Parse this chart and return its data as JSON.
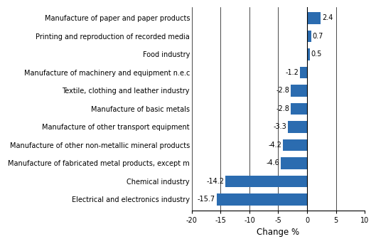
{
  "categories": [
    "Electrical and electronics industry",
    "Chemical industry",
    "Manufacture of fabricated metal products, except m",
    "Manufacture of other non-metallic mineral products",
    "Manufacture of other transport equipment",
    "Manufacture of basic metals",
    "Textile, clothing and leather industry",
    "Manufacture of machinery and equipment n.e.c",
    "Food industry",
    "Printing and reproduction of recorded media",
    "Manufacture of paper and paper products"
  ],
  "values": [
    -15.7,
    -14.2,
    -4.6,
    -4.2,
    -3.3,
    -2.8,
    -2.8,
    -1.2,
    0.5,
    0.7,
    2.4
  ],
  "bar_color": "#2b6cb0",
  "xlabel": "Change %",
  "xlim": [
    -20,
    10
  ],
  "xticks": [
    -20,
    -15,
    -10,
    -5,
    0,
    5,
    10
  ],
  "value_label_fontsize": 7.0,
  "axis_label_fontsize": 8.5,
  "tick_label_fontsize": 7.0,
  "ylabel_fontsize": 7.0,
  "background_color": "#ffffff",
  "bar_height": 0.65
}
